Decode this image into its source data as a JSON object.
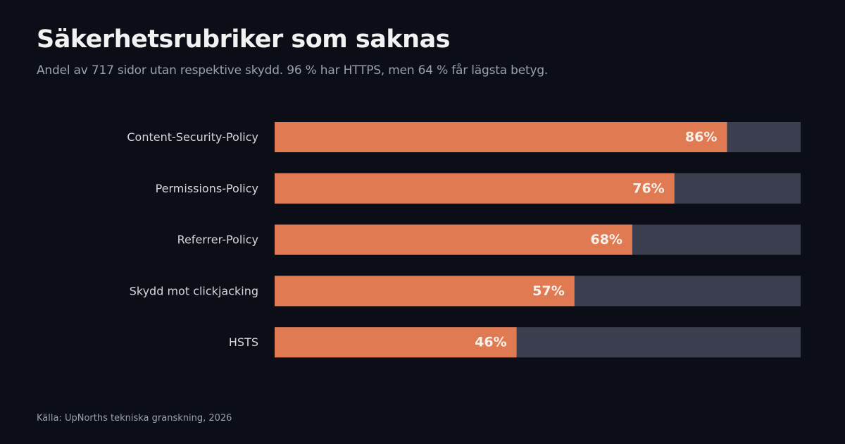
{
  "header": {
    "title": "Säkerhetsrubriker som saknas",
    "subtitle": "Andel av 717 sidor utan respektive skydd. 96 % har HTTPS, men 64 % får lägsta betyg."
  },
  "footer": {
    "source": "Källa: UpNorths tekniska granskning, 2026"
  },
  "colors": {
    "background": "#0b0e16",
    "bar": "#e07a52",
    "track": "#3b3f50"
  },
  "chart_data": {
    "type": "bar",
    "orientation": "horizontal",
    "title": "Säkerhetsrubriker som saknas",
    "subtitle": "Andel av 717 sidor utan respektive skydd. 96 % har HTTPS, men 64 % får lägsta betyg.",
    "categories": [
      "Content-Security-Policy",
      "Permissions-Policy",
      "Referrer-Policy",
      "Skydd mot clickjacking",
      "HSTS"
    ],
    "values": [
      86,
      76,
      68,
      57,
      46
    ],
    "value_labels": [
      "86%",
      "76%",
      "68%",
      "57%",
      "46%"
    ],
    "unit": "%",
    "xlim": [
      0,
      100
    ],
    "grid": false,
    "legend": "none"
  }
}
